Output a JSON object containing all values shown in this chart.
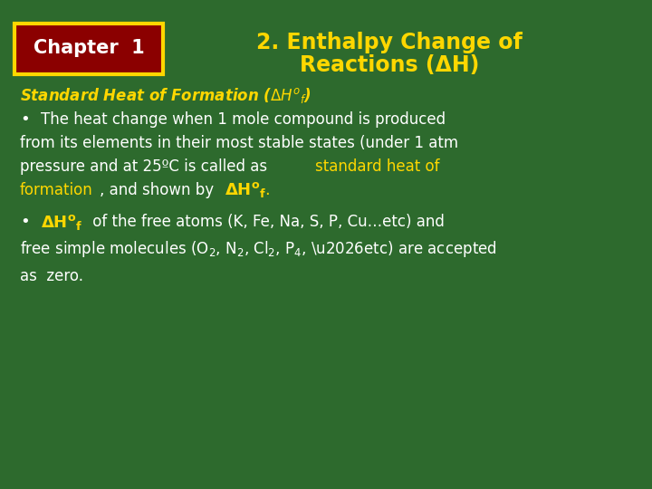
{
  "bg_color": "#2d6a2d",
  "title_line1": "2. Enthalpy Change of",
  "title_line2": "Reactions (ΔH)",
  "title_color": "#FFD700",
  "chapter_box_bg": "#8B0000",
  "chapter_box_border": "#FFD700",
  "chapter_text": "Chapter  1",
  "chapter_text_color": "#FFFFFF",
  "section_title_color": "#FFD700",
  "body_text_color": "#FFFFFF",
  "highlight_color": "#FFD700",
  "figsize": [
    7.2,
    5.4
  ],
  "dpi": 100
}
